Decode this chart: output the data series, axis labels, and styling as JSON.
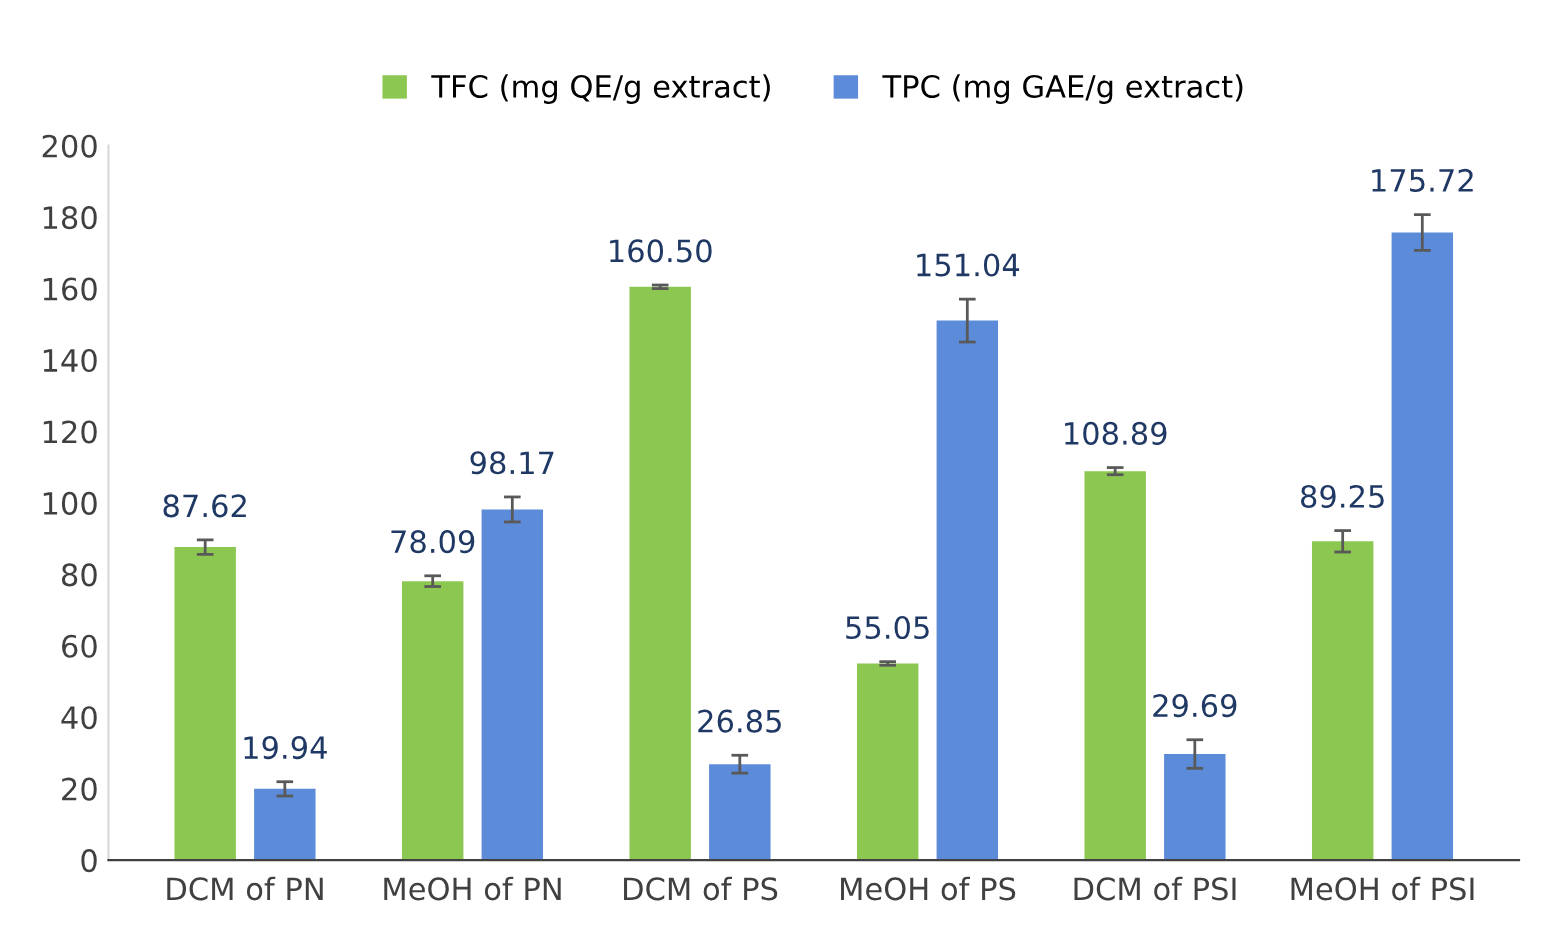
{
  "chart_data": {
    "type": "bar",
    "categories": [
      "DCM of PN",
      "MeOH of PN",
      "DCM of PS",
      "MeOH of PS",
      "DCM of PSI",
      "MeOH of PSI"
    ],
    "series": [
      {
        "name": "TFC (mg QE/g extract)",
        "color": "#8cc751",
        "values": [
          87.62,
          78.09,
          160.5,
          55.05,
          108.89,
          89.25
        ],
        "errors": [
          2,
          1.5,
          0.5,
          0.5,
          1,
          3
        ],
        "value_labels": [
          "87.62",
          "78.09",
          "160.50",
          "55.05",
          "108.89",
          "89.25"
        ]
      },
      {
        "name": "TPC (mg GAE/g extract)",
        "color": "#5b8bd9",
        "values": [
          19.94,
          98.17,
          26.85,
          151.04,
          29.69,
          175.72
        ],
        "errors": [
          2,
          3.5,
          2.5,
          6,
          4,
          5
        ],
        "value_labels": [
          "19.94",
          "98.17",
          "26.85",
          "151.04",
          "29.69",
          "175.72"
        ]
      }
    ],
    "ylim": [
      0,
      200
    ],
    "yticks": [
      0,
      20,
      40,
      60,
      80,
      100,
      120,
      140,
      160,
      180,
      200
    ],
    "legend": "top",
    "grid": false
  }
}
